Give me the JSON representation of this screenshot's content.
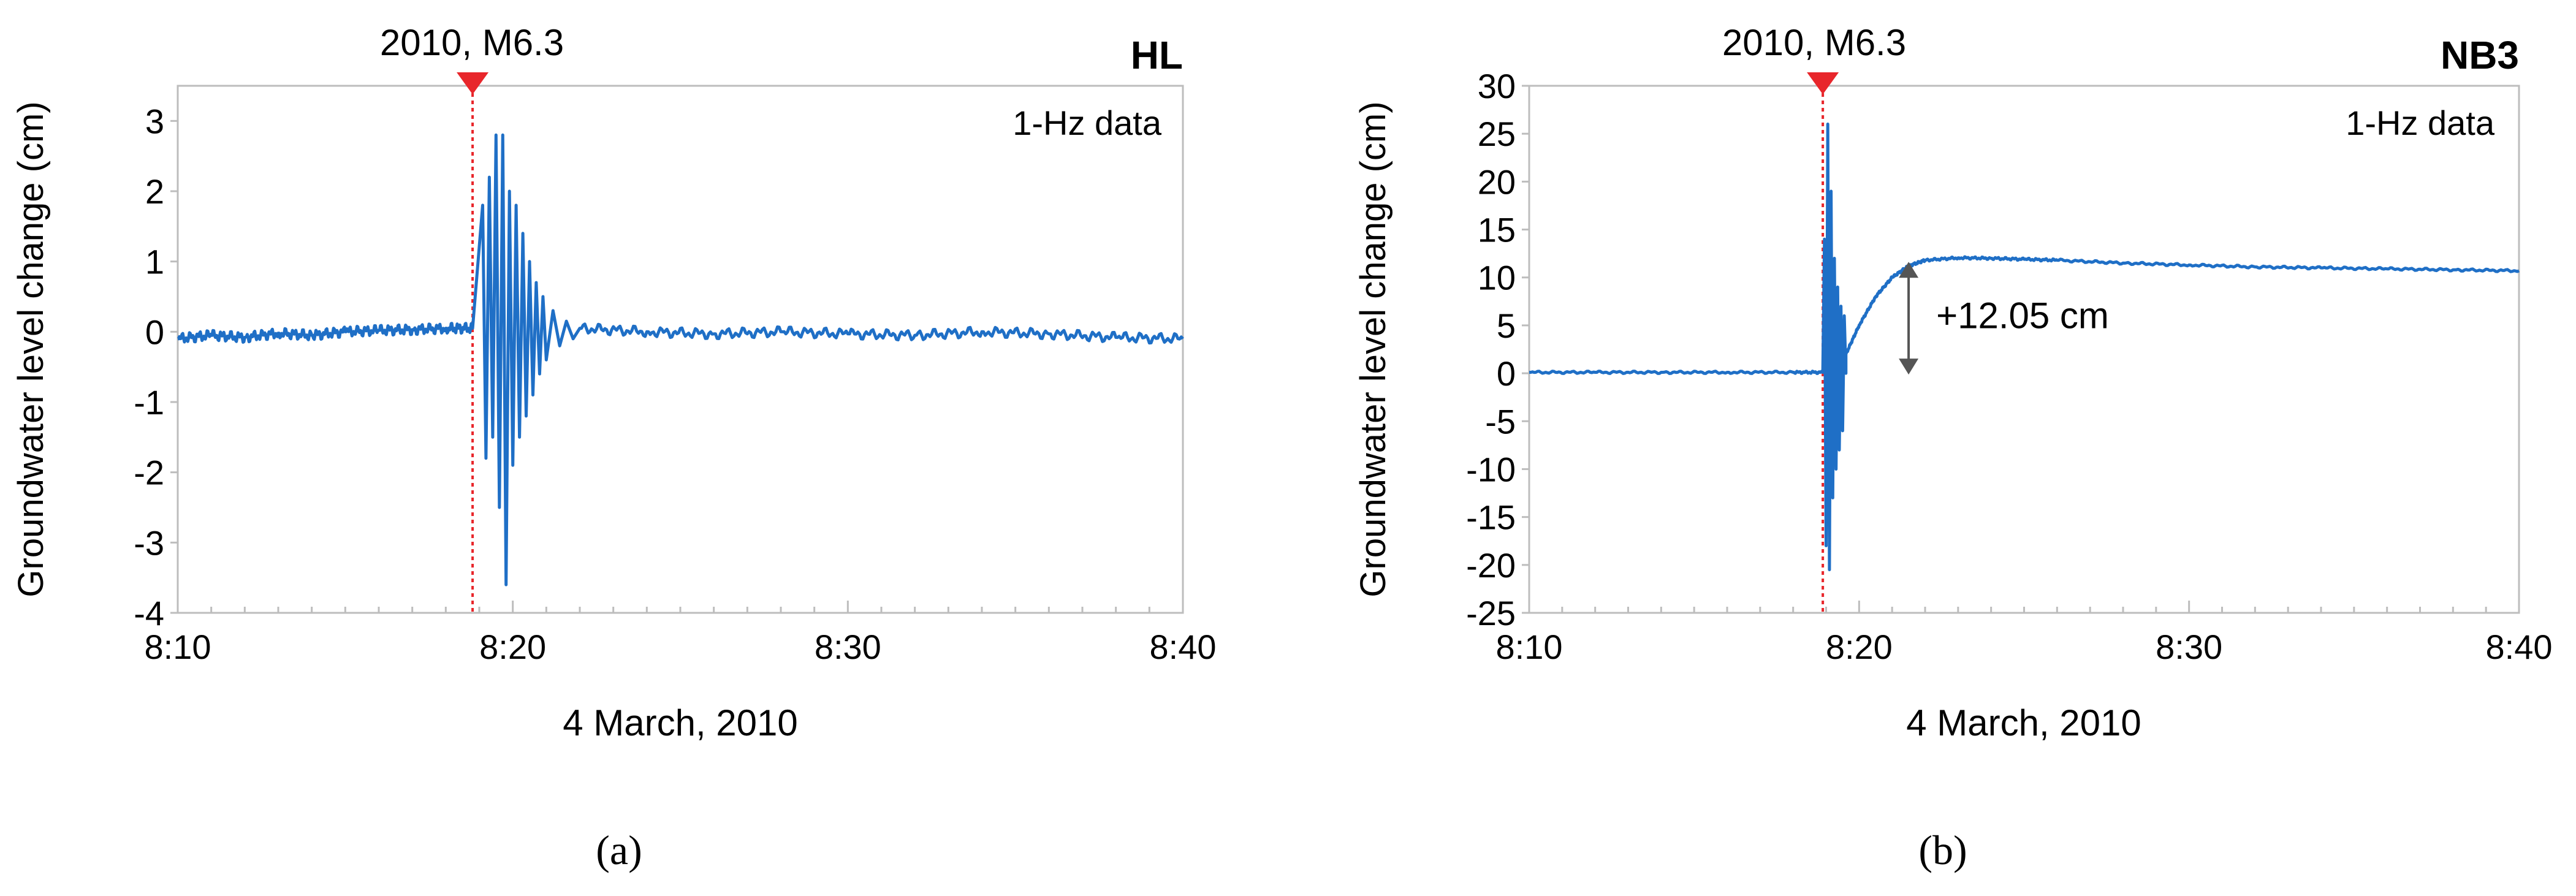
{
  "chart_data": [
    {
      "type": "line",
      "panel_label": "(a)",
      "station": "HL",
      "event_label": "2010, M6.3",
      "data_note": "1-Hz data",
      "xlabel": "4 March, 2010",
      "ylabel": "Groundwater level change (cm)",
      "x_tick_labels": [
        "8:10",
        "8:20",
        "8:30",
        "8:40"
      ],
      "xlim_minutes": [
        0,
        30
      ],
      "y_ticks": [
        -4,
        -3,
        -2,
        -1,
        0,
        1,
        2,
        3
      ],
      "ylim": [
        -4,
        3.5
      ],
      "event_time_minutes": 8.8,
      "series_color": "#1f6fc6",
      "event_color": "#e8262b",
      "series": [
        {
          "values_desc": "pre-event noise",
          "x": [
            0,
            1,
            2,
            3,
            4,
            5,
            6,
            7,
            8,
            8.8
          ],
          "y": [
            -0.1,
            -0.05,
            -0.08,
            -0.02,
            -0.05,
            0.0,
            0.02,
            0.03,
            0.05,
            0.05
          ]
        },
        {
          "values_desc": "coseismic oscillation",
          "x": [
            9.1,
            9.2,
            9.3,
            9.4,
            9.5,
            9.6,
            9.7,
            9.8,
            9.9,
            10.0,
            10.1,
            10.2,
            10.3,
            10.4,
            10.5,
            10.6,
            10.7,
            10.8,
            10.9,
            11.0,
            11.2,
            11.4,
            11.6,
            11.8,
            12.0
          ],
          "y": [
            1.8,
            -1.8,
            2.2,
            -1.5,
            2.8,
            -2.5,
            2.8,
            -3.6,
            2.0,
            -1.9,
            1.8,
            -1.5,
            1.4,
            -1.2,
            1.0,
            -0.9,
            0.7,
            -0.6,
            0.5,
            -0.4,
            0.3,
            -0.2,
            0.15,
            -0.1,
            0.05
          ]
        },
        {
          "values_desc": "post-event noise",
          "x": [
            12,
            14,
            16,
            18,
            20,
            22,
            24,
            26,
            28,
            30
          ],
          "y": [
            0.05,
            0.0,
            -0.03,
            0.0,
            -0.03,
            -0.05,
            0.0,
            -0.03,
            -0.08,
            -0.1
          ]
        }
      ]
    },
    {
      "type": "line",
      "panel_label": "(b)",
      "station": "NB3",
      "event_label": "2010, M6.3",
      "data_note": "1-Hz data",
      "annotation": "+12.05 cm",
      "xlabel": "4 March, 2010",
      "ylabel": "Groundwater level change (cm)",
      "x_tick_labels": [
        "8:10",
        "8:20",
        "8:30",
        "8:40"
      ],
      "xlim_minutes": [
        0,
        30
      ],
      "y_ticks": [
        -25,
        -20,
        -15,
        -10,
        -5,
        0,
        5,
        10,
        15,
        20,
        25,
        30
      ],
      "ylim": [
        -25,
        30
      ],
      "event_time_minutes": 8.9,
      "series_color": "#1f6fc6",
      "event_color": "#e8262b",
      "arrow_color": "#555555",
      "series": [
        {
          "values_desc": "pre-event",
          "x": [
            0,
            2,
            4,
            6,
            8,
            8.9
          ],
          "y": [
            0.1,
            0.1,
            0.1,
            0.1,
            0.1,
            0.1
          ]
        },
        {
          "values_desc": "coseismic oscillation",
          "x": [
            8.95,
            9.0,
            9.05,
            9.1,
            9.15,
            9.2,
            9.25,
            9.3,
            9.35,
            9.4,
            9.45,
            9.5,
            9.55,
            9.6
          ],
          "y": [
            14,
            -18,
            26,
            -20.5,
            19,
            -13,
            12,
            -10,
            9,
            -8,
            7,
            -6,
            6,
            0
          ]
        },
        {
          "values_desc": "post-event recovery",
          "x": [
            9.6,
            10,
            10.5,
            11,
            11.5,
            12,
            13,
            14,
            15,
            16,
            18,
            20,
            22,
            24,
            26,
            28,
            30
          ],
          "y": [
            2,
            5,
            8,
            10,
            11.2,
            11.8,
            12.05,
            12.0,
            11.9,
            11.8,
            11.5,
            11.3,
            11.1,
            11.0,
            10.9,
            10.8,
            10.7
          ]
        }
      ]
    }
  ]
}
